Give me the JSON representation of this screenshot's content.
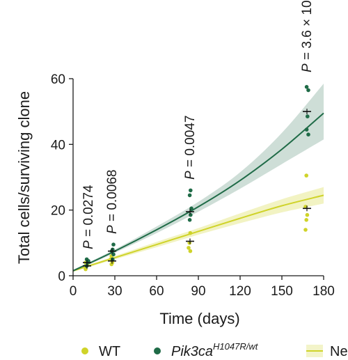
{
  "chart_data": {
    "type": "scatter",
    "xlabel": "Time (days)",
    "ylabel": "Total cells/surviving clone",
    "xlim": [
      0,
      180
    ],
    "ylim": [
      0,
      60
    ],
    "xticks": [
      "0",
      "30",
      "60",
      "90",
      "120",
      "150",
      "180"
    ],
    "yticks": [
      "0",
      "20",
      "40",
      "60"
    ],
    "grid": false,
    "legend_position": "bottom",
    "legend": [
      {
        "label": "WT",
        "marker": "dot",
        "color": "#cfd329"
      },
      {
        "label": "Pik3ca",
        "superscript": "H1047R/wt",
        "italic": true,
        "marker": "dot",
        "color": "#1f6b47"
      },
      {
        "label": "Ne",
        "marker": "band-line",
        "color": "#cfd329"
      }
    ],
    "annotations": [
      {
        "text": "P = 0.0274",
        "x": 11
      },
      {
        "text": "P = 0.0068",
        "x": 28
      },
      {
        "text": "P = 0.0047",
        "x": 84
      },
      {
        "text": "P = 3.6 × 10",
        "x": 168
      }
    ],
    "series": [
      {
        "name": "WT",
        "color": "#cfd329",
        "points": [
          {
            "x": 10,
            "y": 2.0
          },
          {
            "x": 10,
            "y": 3.0
          },
          {
            "x": 10,
            "y": 3.5
          },
          {
            "x": 10,
            "y": 4.0
          },
          {
            "x": 28,
            "y": 3.5
          },
          {
            "x": 28,
            "y": 4.0
          },
          {
            "x": 28,
            "y": 5.0
          },
          {
            "x": 28,
            "y": 6.0
          },
          {
            "x": 84,
            "y": 7.5
          },
          {
            "x": 84,
            "y": 8.5
          },
          {
            "x": 84,
            "y": 10.0
          },
          {
            "x": 84,
            "y": 13.0
          },
          {
            "x": 168,
            "y": 14.0
          },
          {
            "x": 168,
            "y": 17.0
          },
          {
            "x": 168,
            "y": 18.5
          },
          {
            "x": 168,
            "y": 21.0
          },
          {
            "x": 168,
            "y": 30.5
          }
        ],
        "means": [
          {
            "x": 10,
            "y": 3.0
          },
          {
            "x": 28,
            "y": 4.5
          },
          {
            "x": 84,
            "y": 10.5
          },
          {
            "x": 168,
            "y": 20.5
          }
        ],
        "fit": [
          {
            "x": 0,
            "y": 1.5
          },
          {
            "x": 30,
            "y": 5.5
          },
          {
            "x": 60,
            "y": 9.5
          },
          {
            "x": 90,
            "y": 13.5
          },
          {
            "x": 120,
            "y": 17.5
          },
          {
            "x": 150,
            "y": 21.3
          },
          {
            "x": 180,
            "y": 24.5
          }
        ],
        "ci_low": [
          1.2,
          5.0,
          8.7,
          12.5,
          16.0,
          19.3,
          22.0
        ],
        "ci_high": [
          1.8,
          6.0,
          10.3,
          14.5,
          19.0,
          23.3,
          27.0
        ]
      },
      {
        "name": "Pik3ca H1047R/wt",
        "color": "#1f6b47",
        "points": [
          {
            "x": 10,
            "y": 3.0
          },
          {
            "x": 10,
            "y": 4.0
          },
          {
            "x": 10,
            "y": 4.5
          },
          {
            "x": 10,
            "y": 5.0
          },
          {
            "x": 28,
            "y": 5.0
          },
          {
            "x": 28,
            "y": 6.5
          },
          {
            "x": 28,
            "y": 7.5
          },
          {
            "x": 28,
            "y": 8.0
          },
          {
            "x": 28,
            "y": 9.5
          },
          {
            "x": 84,
            "y": 17.0
          },
          {
            "x": 84,
            "y": 18.5
          },
          {
            "x": 84,
            "y": 20.5
          },
          {
            "x": 84,
            "y": 24.5
          },
          {
            "x": 84,
            "y": 26.0
          },
          {
            "x": 168,
            "y": 43.0
          },
          {
            "x": 168,
            "y": 44.5
          },
          {
            "x": 168,
            "y": 48.5
          },
          {
            "x": 168,
            "y": 56.5
          },
          {
            "x": 168,
            "y": 57.5
          }
        ],
        "means": [
          {
            "x": 10,
            "y": 4.0
          },
          {
            "x": 28,
            "y": 7.5
          },
          {
            "x": 84,
            "y": 19.5
          },
          {
            "x": 168,
            "y": 50.0
          }
        ],
        "fit": [
          {
            "x": 0,
            "y": 1.5
          },
          {
            "x": 30,
            "y": 7.5
          },
          {
            "x": 60,
            "y": 14.0
          },
          {
            "x": 90,
            "y": 21.0
          },
          {
            "x": 120,
            "y": 29.0
          },
          {
            "x": 150,
            "y": 38.5
          },
          {
            "x": 180,
            "y": 49.5
          }
        ],
        "ci_low": [
          1.2,
          7.0,
          13.0,
          19.5,
          26.5,
          34.0,
          41.5
        ],
        "ci_high": [
          1.8,
          8.0,
          15.0,
          22.5,
          31.5,
          43.5,
          58.5
        ]
      }
    ]
  }
}
